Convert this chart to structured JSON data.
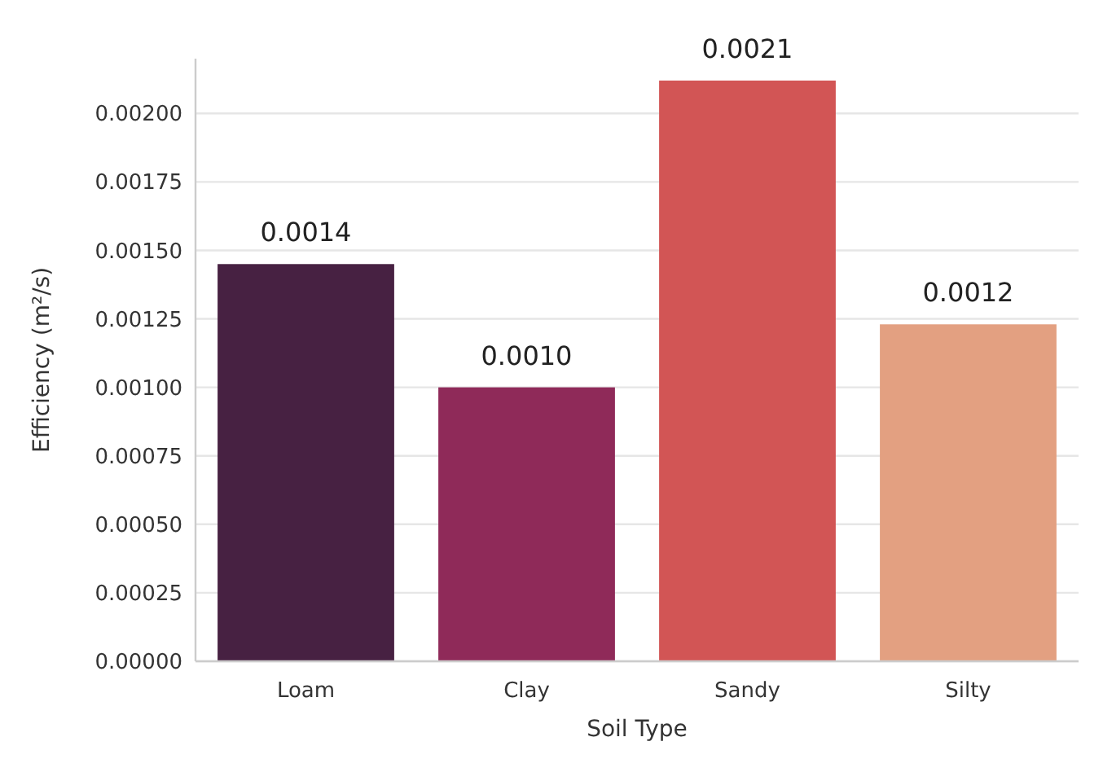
{
  "chart_data": {
    "type": "bar",
    "xlabel": "Soil Type",
    "ylabel": "Efficiency (m²/s)",
    "categories": [
      "Loam",
      "Clay",
      "Sandy",
      "Silty"
    ],
    "values": [
      0.00145,
      0.001,
      0.00212,
      0.00123
    ],
    "colors": [
      "#472142",
      "#8f2a59",
      "#d25555",
      "#e3a081"
    ],
    "value_labels": [
      "0.0014",
      "0.0010",
      "0.0021",
      "0.0012"
    ],
    "ylim": [
      0,
      0.0022
    ],
    "yticks": [
      {
        "value": 0,
        "label": "0.00000"
      },
      {
        "value": 0.00025,
        "label": "0.00025"
      },
      {
        "value": 0.0005,
        "label": "0.00050"
      },
      {
        "value": 0.00075,
        "label": "0.00075"
      },
      {
        "value": 0.001,
        "label": "0.00100"
      },
      {
        "value": 0.00125,
        "label": "0.00125"
      },
      {
        "value": 0.0015,
        "label": "0.00150"
      },
      {
        "value": 0.00175,
        "label": "0.00175"
      },
      {
        "value": 0.002,
        "label": "0.00200"
      }
    ],
    "grid": "y"
  }
}
